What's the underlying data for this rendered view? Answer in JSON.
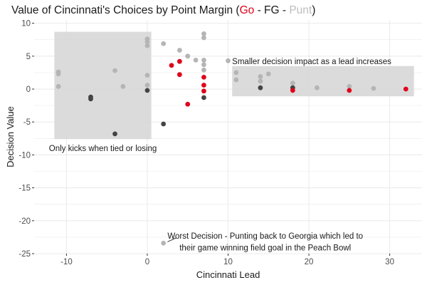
{
  "title": {
    "prefix": "Value of Cincinnati's Choices by Point Margin (",
    "go": "Go",
    "sep1": " - FG - ",
    "punt": "Punt",
    "suffix": ")"
  },
  "colors": {
    "go": "#e0001b",
    "fg": "#444444",
    "punt": "#b5b5b5",
    "panel": "#ffffff",
    "grid": "#ebebeb",
    "highlight_box": "#d9d9d9"
  },
  "chart_data": {
    "type": "scatter",
    "title": "Value of Cincinnati's Choices by Point Margin (Go - FG - Punt)",
    "xlabel": "Cincinnati Lead",
    "ylabel": "Decision Value",
    "xlim": [
      -14,
      34
    ],
    "ylim": [
      -25,
      10.5
    ],
    "x_ticks": [
      -10,
      0,
      10,
      20,
      30
    ],
    "y_ticks": [
      10,
      5,
      0,
      -5,
      -10,
      -15,
      -20,
      -25
    ],
    "grid": true,
    "series": [
      {
        "key": "punt",
        "points": [
          [
            -11,
            2.6
          ],
          [
            -11,
            2.3
          ],
          [
            -11,
            0.4
          ],
          [
            -4,
            2.8
          ],
          [
            -3,
            0.4
          ],
          [
            0,
            7.6
          ],
          [
            0,
            7.2
          ],
          [
            0,
            6.6
          ],
          [
            0,
            2.1
          ],
          [
            0,
            0.6
          ],
          [
            2,
            6.9
          ],
          [
            4,
            5.9
          ],
          [
            5,
            5.0
          ],
          [
            6,
            4.4
          ],
          [
            7,
            8.4
          ],
          [
            7,
            7.8
          ],
          [
            7,
            4.4
          ],
          [
            7,
            3.7
          ],
          [
            7,
            2.9
          ],
          [
            10,
            4.3
          ],
          [
            11,
            2.5
          ],
          [
            11,
            1.4
          ],
          [
            14,
            1.9
          ],
          [
            14,
            1.2
          ],
          [
            15,
            2.3
          ],
          [
            18,
            0.9
          ],
          [
            21,
            0.2
          ],
          [
            25,
            0.4
          ],
          [
            28,
            0.1
          ],
          [
            2,
            -23.4
          ]
        ]
      },
      {
        "key": "fg",
        "points": [
          [
            -7,
            -1.2
          ],
          [
            -7,
            -1.5
          ],
          [
            -4,
            -6.8
          ],
          [
            0,
            -0.2
          ],
          [
            2,
            -5.3
          ],
          [
            7,
            -1.3
          ],
          [
            14,
            0.2
          ],
          [
            18,
            0.2
          ]
        ]
      },
      {
        "key": "go",
        "points": [
          [
            3,
            3.6
          ],
          [
            4,
            4.2
          ],
          [
            4,
            2.2
          ],
          [
            5,
            -2.3
          ],
          [
            7,
            1.8
          ],
          [
            7,
            0.6
          ],
          [
            7,
            -0.3
          ],
          [
            18,
            -0.2
          ],
          [
            25,
            -0.2
          ],
          [
            32,
            0.0
          ]
        ]
      }
    ],
    "highlight_boxes": [
      {
        "x": [
          -11.5,
          0.5
        ],
        "y": [
          -7.6,
          8.7
        ]
      },
      {
        "x": [
          10.5,
          33
        ],
        "y": [
          -1.1,
          3.5
        ]
      }
    ],
    "annotations": [
      {
        "lines": [
          "Smaller decision impact as a lead increases"
        ]
      },
      {
        "lines": [
          "Only kicks when tied or losing"
        ]
      },
      {
        "lines": [
          "Worst Decision - Punting back to Georgia which led to",
          "their game winning field goal in the Peach Bowl"
        ]
      }
    ]
  }
}
